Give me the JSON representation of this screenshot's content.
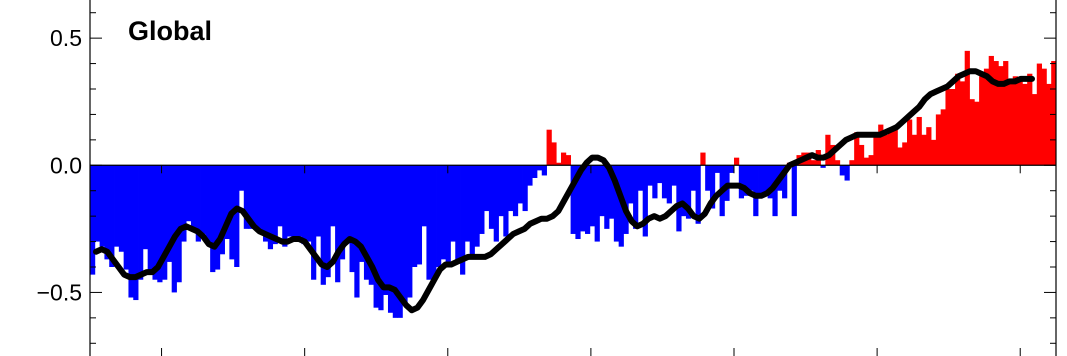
{
  "chart_data": {
    "type": "bar",
    "title": "Global",
    "xlabel": "",
    "ylabel": "",
    "x_start": 1880,
    "x_step": 1,
    "xlim": [
      1880,
      2015
    ],
    "ylim": [
      -0.75,
      0.65
    ],
    "yticks": [
      -0.5,
      0.0,
      0.5
    ],
    "ytick_labels": [
      "−0.5",
      "0.0",
      "0.5"
    ],
    "xticks": [
      1890,
      1910,
      1930,
      1950,
      1970,
      1990,
      2010
    ],
    "xtick_labels": [],
    "colors": {
      "positive": "#ff0000",
      "negative": "#0000ff",
      "smooth": "#000000"
    },
    "series": [
      {
        "name": "",
        "values": [
          -0.43,
          -0.3,
          -0.32,
          -0.37,
          -0.4,
          -0.32,
          -0.34,
          -0.41,
          -0.52,
          -0.53,
          -0.45,
          -0.33,
          -0.43,
          -0.45,
          -0.46,
          -0.45,
          -0.38,
          -0.5,
          -0.46,
          -0.3,
          -0.22,
          -0.26,
          -0.3,
          -0.27,
          -0.3,
          -0.42,
          -0.41,
          -0.35,
          -0.29,
          -0.37,
          -0.4,
          -0.1,
          -0.25,
          -0.25,
          -0.25,
          -0.26,
          -0.3,
          -0.33,
          -0.31,
          -0.24,
          -0.32,
          -0.28,
          -0.28,
          -0.28,
          -0.31,
          -0.3,
          -0.45,
          -0.28,
          -0.47,
          -0.44,
          -0.24,
          -0.46,
          -0.37,
          -0.3,
          -0.42,
          -0.52,
          -0.38,
          -0.45,
          -0.47,
          -0.56,
          -0.57,
          -0.51,
          -0.58,
          -0.6,
          -0.6,
          -0.55,
          -0.52,
          -0.4,
          -0.39,
          -0.24,
          -0.45,
          -0.45,
          -0.4,
          -0.37,
          -0.38,
          -0.3,
          -0.38,
          -0.43,
          -0.3,
          -0.36,
          -0.32,
          -0.27,
          -0.18,
          -0.25,
          -0.3,
          -0.2,
          -0.28,
          -0.18,
          -0.2,
          -0.15,
          -0.18,
          -0.08,
          -0.05,
          -0.02,
          -0.04,
          0.14,
          0.09,
          0.01,
          0.05,
          0.04,
          -0.27,
          -0.29,
          -0.26,
          -0.27,
          -0.24,
          -0.3,
          -0.2,
          -0.25,
          -0.21,
          -0.3,
          -0.32,
          -0.27,
          -0.15,
          -0.25,
          -0.1,
          -0.28,
          -0.08,
          -0.13,
          -0.07,
          -0.13,
          -0.15,
          -0.08,
          -0.26,
          -0.2,
          -0.21,
          -0.1,
          -0.23,
          0.05,
          -0.1,
          -0.17,
          -0.03,
          -0.2,
          -0.14,
          -0.03,
          0.03,
          -0.13,
          -0.12,
          -0.1,
          -0.2,
          -0.12,
          -0.11,
          -0.13,
          -0.2,
          -0.1,
          -0.13,
          0.01,
          -0.2,
          0.04,
          0.05,
          0.05,
          0.02,
          0.06,
          -0.01,
          0.12,
          0.08,
          0.02,
          -0.04,
          -0.06,
          0.02,
          0.13,
          0.08,
          0.03,
          0.04,
          0.13,
          0.16,
          0.12,
          0.14,
          0.14,
          0.07,
          0.09,
          0.18,
          0.12,
          0.19,
          0.12,
          0.15,
          0.1,
          0.2,
          0.22,
          0.3,
          0.3,
          0.36,
          0.33,
          0.45,
          0.26,
          0.25,
          0.35,
          0.38,
          0.43,
          0.41,
          0.39,
          0.41,
          0.34,
          0.35,
          0.33,
          0.32,
          0.36,
          0.28,
          0.4,
          0.38,
          0.32,
          0.41
        ]
      },
      {
        "name": "",
        "values": [
          -0.34,
          -0.33,
          -0.34,
          -0.37,
          -0.4,
          -0.43,
          -0.44,
          -0.44,
          -0.43,
          -0.42,
          -0.42,
          -0.4,
          -0.36,
          -0.32,
          -0.28,
          -0.25,
          -0.24,
          -0.25,
          -0.26,
          -0.28,
          -0.31,
          -0.32,
          -0.29,
          -0.24,
          -0.19,
          -0.17,
          -0.18,
          -0.21,
          -0.24,
          -0.26,
          -0.27,
          -0.28,
          -0.29,
          -0.3,
          -0.3,
          -0.29,
          -0.29,
          -0.3,
          -0.33,
          -0.36,
          -0.39,
          -0.4,
          -0.38,
          -0.34,
          -0.31,
          -0.29,
          -0.3,
          -0.32,
          -0.36,
          -0.4,
          -0.45,
          -0.48,
          -0.48,
          -0.49,
          -0.52,
          -0.55,
          -0.57,
          -0.56,
          -0.53,
          -0.49,
          -0.45,
          -0.41,
          -0.39,
          -0.39,
          -0.38,
          -0.37,
          -0.36,
          -0.36,
          -0.36,
          -0.36,
          -0.35,
          -0.33,
          -0.31,
          -0.29,
          -0.27,
          -0.26,
          -0.25,
          -0.23,
          -0.22,
          -0.21,
          -0.21,
          -0.2,
          -0.18,
          -0.14,
          -0.1,
          -0.06,
          -0.02,
          0.01,
          0.03,
          0.03,
          0.02,
          -0.01,
          -0.06,
          -0.12,
          -0.18,
          -0.22,
          -0.24,
          -0.23,
          -0.21,
          -0.2,
          -0.21,
          -0.2,
          -0.18,
          -0.16,
          -0.15,
          -0.17,
          -0.2,
          -0.21,
          -0.19,
          -0.15,
          -0.12,
          -0.1,
          -0.08,
          -0.08,
          -0.08,
          -0.09,
          -0.11,
          -0.12,
          -0.12,
          -0.11,
          -0.09,
          -0.06,
          -0.03,
          0.0,
          0.01,
          0.02,
          0.03,
          0.04,
          0.03,
          0.03,
          0.04,
          0.06,
          0.08,
          0.1,
          0.11,
          0.12,
          0.12,
          0.12,
          0.12,
          0.12,
          0.13,
          0.14,
          0.15,
          0.17,
          0.19,
          0.21,
          0.23,
          0.26,
          0.28,
          0.29,
          0.3,
          0.31,
          0.33,
          0.35,
          0.36,
          0.37,
          0.37,
          0.36,
          0.35,
          0.33,
          0.32,
          0.32,
          0.33,
          0.33,
          0.34,
          0.34,
          0.34
        ]
      }
    ]
  }
}
